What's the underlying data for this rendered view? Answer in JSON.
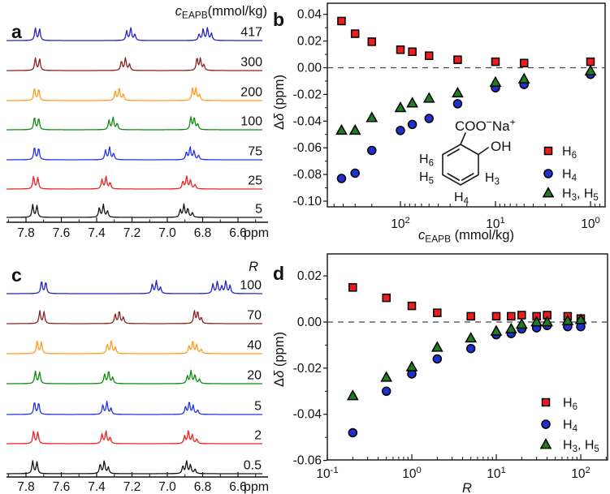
{
  "figure": {
    "background": "#ffffff",
    "description": "Four-panel NMR figure: stacked 1H NMR spectra (a, c) and chemical-shift-change scatter plots (b, d) for sodium salicylate protons"
  },
  "panels": {
    "a": {
      "letter": "a",
      "title_text": "cEAPB(mmol/kg)",
      "title_parts": [
        [
          "c",
          "i"
        ],
        [
          "EAPB",
          "sub"
        ],
        [
          "(mmol/kg)",
          "n"
        ]
      ],
      "ppm_unit": "ppm"
    },
    "b": {
      "letter": "b",
      "ylabel_parts": [
        [
          "Δ",
          "n"
        ],
        [
          "δ",
          "i"
        ],
        [
          " (ppm)",
          "n"
        ]
      ],
      "xlabel_parts": [
        [
          "c",
          "i"
        ],
        [
          "EAPB",
          "sub"
        ],
        [
          " (mmol/kg)",
          "n"
        ]
      ],
      "molecule": {
        "coo_parts": [
          [
            "COO",
            "n"
          ],
          [
            "−",
            "sup"
          ],
          [
            "Na",
            "n"
          ],
          [
            "+",
            "sup"
          ]
        ],
        "oh_parts": [
          [
            "OH",
            "n"
          ]
        ],
        "h6_parts": [
          [
            "H",
            "n"
          ],
          [
            "6",
            "sub"
          ]
        ],
        "h5_parts": [
          [
            "H",
            "n"
          ],
          [
            "5",
            "sub"
          ]
        ],
        "h3_parts": [
          [
            "H",
            "n"
          ],
          [
            "3",
            "sub"
          ]
        ],
        "h4_parts": [
          [
            "H",
            "n"
          ],
          [
            "4",
            "sub"
          ]
        ]
      }
    },
    "c": {
      "letter": "c",
      "title_text": "R",
      "title_parts": [
        [
          "R",
          "i"
        ]
      ],
      "ppm_unit": "ppm"
    },
    "d": {
      "letter": "d",
      "ylabel_parts": [
        [
          "Δ",
          "n"
        ],
        [
          "δ",
          "i"
        ],
        [
          " (ppm)",
          "n"
        ]
      ],
      "xlabel_parts": [
        [
          "R",
          "i"
        ]
      ]
    }
  },
  "patterns": {
    "d2": [
      [
        -0.012,
        0.92
      ],
      [
        0.012,
        1.0
      ]
    ],
    "t3": [
      [
        -0.026,
        0.5
      ],
      [
        -0.003,
        1.0
      ],
      [
        0.02,
        0.75
      ]
    ],
    "m3": [
      [
        -0.027,
        0.45
      ],
      [
        -0.007,
        0.95
      ],
      [
        0.012,
        1.0
      ]
    ],
    "m4": [
      [
        -0.042,
        0.35
      ],
      [
        -0.016,
        0.7
      ],
      [
        0.006,
        1.0
      ],
      [
        0.027,
        0.6
      ]
    ],
    "m4b": [
      [
        -0.035,
        0.55
      ],
      [
        -0.012,
        1.0
      ],
      [
        0.012,
        0.9
      ],
      [
        0.035,
        0.5
      ]
    ],
    "m5": [
      [
        -0.055,
        0.65
      ],
      [
        -0.031,
        1.0
      ],
      [
        -0.008,
        0.6
      ],
      [
        0.017,
        0.95
      ],
      [
        0.042,
        0.75
      ]
    ]
  },
  "chart_data": [
    {
      "id": "a",
      "type": "line",
      "subtype": "nmr-stack",
      "title": "cEAPB (mmol/kg)",
      "xlabel": "ppm",
      "x_reversed": true,
      "xlim": [
        7.91,
        6.46
      ],
      "x_ticks": [
        7.8,
        7.6,
        7.4,
        7.2,
        7.0,
        6.8,
        6.6
      ],
      "stack_labels": [
        "417",
        "300",
        "200",
        "100",
        "75",
        "25",
        "5"
      ],
      "spectra": [
        {
          "label": "417",
          "color": "#2323c8",
          "multiplets": [
            [
              7.735,
              "d2"
            ],
            [
              7.21,
              "t3"
            ],
            [
              6.785,
              "m4b"
            ]
          ]
        },
        {
          "label": "300",
          "color": "#8b2121",
          "multiplets": [
            [
              7.735,
              "d2"
            ],
            [
              7.24,
              "t3"
            ],
            [
              6.82,
              "m3"
            ]
          ]
        },
        {
          "label": "200",
          "color": "#ff9d1e",
          "multiplets": [
            [
              7.74,
              "d2"
            ],
            [
              7.275,
              "t3"
            ],
            [
              6.845,
              "m3"
            ]
          ]
        },
        {
          "label": "100",
          "color": "#0f8c0f",
          "multiplets": [
            [
              7.74,
              "d2"
            ],
            [
              7.31,
              "t3"
            ],
            [
              6.855,
              "m3"
            ]
          ]
        },
        {
          "label": "75",
          "color": "#2433e8",
          "multiplets": [
            [
              7.74,
              "d2"
            ],
            [
              7.33,
              "t3"
            ],
            [
              6.865,
              "m4"
            ]
          ]
        },
        {
          "label": "25",
          "color": "#f02222",
          "multiplets": [
            [
              7.745,
              "d2"
            ],
            [
              7.35,
              "t3"
            ],
            [
              6.885,
              "m4"
            ]
          ]
        },
        {
          "label": "5",
          "color": "#141414",
          "multiplets": [
            [
              7.75,
              "d2"
            ],
            [
              7.365,
              "t3"
            ],
            [
              6.9,
              "m4"
            ]
          ]
        }
      ]
    },
    {
      "id": "b",
      "type": "scatter",
      "xlabel": "cEAPB (mmol/kg)",
      "ylabel": "Δδ (ppm)",
      "x_scale": "log",
      "x_reversed": true,
      "xlim": [
        600,
        0.7
      ],
      "ylim": [
        -0.104,
        0.048
      ],
      "x_tick_exponents": [
        2,
        1,
        0
      ],
      "y_tick_values": [
        0.04,
        0.02,
        0.0,
        -0.02,
        -0.04,
        -0.06,
        -0.08,
        -0.1
      ],
      "y_tick_labels": [
        "0.04",
        "0.02",
        "0.00",
        "-0.02",
        "-0.04",
        "-0.06",
        "-0.08",
        "-0.10"
      ],
      "zero_line": true,
      "legend_position": "right-middle",
      "series": [
        {
          "name": "H6",
          "key": "h6",
          "marker": "square",
          "fill": "#ee1c1c",
          "label_parts": [
            [
              "H",
              "n"
            ],
            [
              "6",
              "sub"
            ]
          ],
          "x": [
            417,
            300,
            200,
            100,
            75,
            50,
            25,
            10,
            5,
            1
          ],
          "y": [
            0.035,
            0.0255,
            0.0195,
            0.0135,
            0.012,
            0.009,
            0.006,
            0.0045,
            0.0035,
            0.0045
          ]
        },
        {
          "name": "H4",
          "key": "h4",
          "marker": "circle",
          "fill": "#2030cf",
          "label_parts": [
            [
              "H",
              "n"
            ],
            [
              "4",
              "sub"
            ]
          ],
          "x": [
            417,
            300,
            200,
            100,
            75,
            50,
            25,
            10,
            5,
            1
          ],
          "y": [
            -0.083,
            -0.079,
            -0.062,
            -0.047,
            -0.0425,
            -0.038,
            -0.027,
            -0.015,
            -0.0125,
            -0.005
          ]
        },
        {
          "name": "H3, H5",
          "key": "h3h5",
          "marker": "triangle",
          "fill": "#1e7d1e",
          "label_parts": [
            [
              "H",
              "n"
            ],
            [
              "3",
              "sub"
            ],
            [
              ", H",
              "n"
            ],
            [
              "5",
              "sub"
            ]
          ],
          "x": [
            417,
            300,
            200,
            100,
            75,
            50,
            25,
            10,
            5,
            1
          ],
          "y": [
            -0.047,
            -0.047,
            -0.0375,
            -0.03,
            -0.0265,
            -0.023,
            -0.019,
            -0.011,
            -0.0085,
            -0.0025
          ]
        }
      ]
    },
    {
      "id": "c",
      "type": "line",
      "subtype": "nmr-stack",
      "title": "R",
      "xlabel": "ppm",
      "x_reversed": true,
      "xlim": [
        7.91,
        6.46
      ],
      "x_ticks": [
        7.8,
        7.6,
        7.4,
        7.2,
        7.0,
        6.8,
        6.6
      ],
      "stack_labels": [
        "100",
        "70",
        "40",
        "20",
        "5",
        "2",
        "0.5"
      ],
      "spectra": [
        {
          "label": "100",
          "color": "#2323c8",
          "multiplets": [
            [
              7.7,
              "d2"
            ],
            [
              7.065,
              "t3"
            ],
            [
              6.7,
              "m5"
            ]
          ]
        },
        {
          "label": "70",
          "color": "#8b2121",
          "multiplets": [
            [
              7.71,
              "d2"
            ],
            [
              7.275,
              "t3"
            ],
            [
              6.835,
              "m3"
            ]
          ]
        },
        {
          "label": "40",
          "color": "#ff9d1e",
          "multiplets": [
            [
              7.725,
              "d2"
            ],
            [
              7.32,
              "t3"
            ],
            [
              6.85,
              "m4"
            ]
          ]
        },
        {
          "label": "20",
          "color": "#0f8c0f",
          "multiplets": [
            [
              7.735,
              "d2"
            ],
            [
              7.335,
              "t3"
            ],
            [
              6.86,
              "m4"
            ]
          ]
        },
        {
          "label": "5",
          "color": "#2433e8",
          "multiplets": [
            [
              7.74,
              "d2"
            ],
            [
              7.345,
              "t3"
            ],
            [
              6.87,
              "m4"
            ]
          ]
        },
        {
          "label": "2",
          "color": "#f02222",
          "multiplets": [
            [
              7.745,
              "d2"
            ],
            [
              7.35,
              "t3"
            ],
            [
              6.875,
              "m4"
            ]
          ]
        },
        {
          "label": "0.5",
          "color": "#141414",
          "multiplets": [
            [
              7.75,
              "d2"
            ],
            [
              7.36,
              "t3"
            ],
            [
              6.885,
              "m4"
            ]
          ]
        }
      ]
    },
    {
      "id": "d",
      "type": "scatter",
      "xlabel": "R",
      "ylabel": "Δδ (ppm)",
      "x_scale": "log",
      "x_reversed": false,
      "xlim": [
        0.1,
        208
      ],
      "ylim": [
        -0.0598,
        0.0295
      ],
      "x_tick_exponents": [
        -1,
        0,
        1,
        2
      ],
      "y_tick_values": [
        0.02,
        0.0,
        -0.02,
        -0.04,
        -0.06
      ],
      "y_tick_labels": [
        "0.02",
        "0.00",
        "-0.02",
        "-0.04",
        "-0.06"
      ],
      "zero_line": true,
      "legend_position": "right-bottom",
      "series": [
        {
          "name": "H6",
          "key": "h6",
          "marker": "square",
          "fill": "#ee1c1c",
          "label_parts": [
            [
              "H",
              "n"
            ],
            [
              "6",
              "sub"
            ]
          ],
          "x": [
            0.2,
            0.5,
            1,
            2,
            5,
            10,
            15,
            20,
            30,
            40,
            70,
            100
          ],
          "y": [
            0.015,
            0.0105,
            0.007,
            0.004,
            0.0025,
            0.0025,
            0.0025,
            0.003,
            0.0025,
            0.003,
            0.0025,
            0.0015
          ]
        },
        {
          "name": "H4",
          "key": "h4",
          "marker": "circle",
          "fill": "#2030cf",
          "label_parts": [
            [
              "H",
              "n"
            ],
            [
              "4",
              "sub"
            ]
          ],
          "x": [
            0.2,
            0.5,
            1,
            2,
            5,
            10,
            15,
            20,
            30,
            40,
            70,
            100
          ],
          "y": [
            -0.048,
            -0.03,
            -0.0225,
            -0.016,
            -0.0115,
            -0.0055,
            -0.005,
            -0.003,
            -0.0025,
            -0.0015,
            -0.002,
            -0.002
          ]
        },
        {
          "name": "H3, H5",
          "key": "h3h5",
          "marker": "triangle",
          "fill": "#1e7d1e",
          "label_parts": [
            [
              "H",
              "n"
            ],
            [
              "3",
              "sub"
            ],
            [
              ", H",
              "n"
            ],
            [
              "5",
              "sub"
            ]
          ],
          "x": [
            0.2,
            0.5,
            1,
            2,
            5,
            10,
            15,
            20,
            30,
            40,
            70,
            100
          ],
          "y": [
            -0.032,
            -0.024,
            -0.0195,
            -0.011,
            -0.007,
            -0.004,
            -0.003,
            -0.001,
            0.0,
            0.0,
            0.0005,
            0.001
          ]
        }
      ]
    }
  ]
}
